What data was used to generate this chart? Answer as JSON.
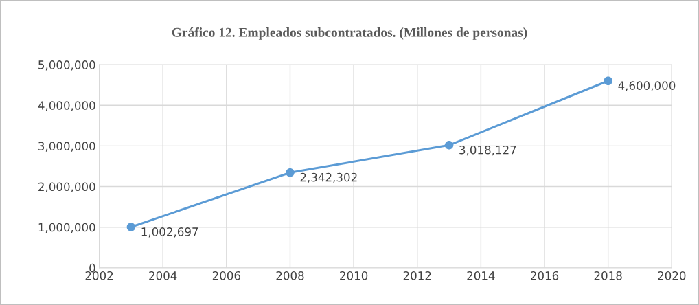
{
  "chart_data": {
    "type": "line",
    "title": "Gráfico 12. Empleados subcontratados. (Millones de personas)",
    "x": [
      2003,
      2008,
      2013,
      2018
    ],
    "series": [
      {
        "color": "#5b9bd5",
        "values": [
          1002697,
          2342302,
          3018127,
          4600000
        ],
        "value_labels": [
          "1,002,697",
          "2,342,302",
          "3,018,127",
          "4,600,000"
        ]
      }
    ],
    "xlim": [
      2002,
      2020
    ],
    "xticks": [
      2002,
      2004,
      2006,
      2008,
      2010,
      2012,
      2014,
      2016,
      2018,
      2020
    ],
    "ylim": [
      0,
      5000000
    ],
    "yticks": [
      0,
      {
        "value": 1000000,
        "label": "1,000,000"
      },
      {
        "value": 2000000,
        "label": "2,000,000"
      },
      {
        "value": 3000000,
        "label": "3,000,000"
      },
      {
        "value": 4000000,
        "label": "4,000,000"
      },
      {
        "value": 5000000,
        "label": "5,000,000"
      }
    ],
    "grid": true,
    "marker": "circle",
    "line_style": "solid"
  }
}
